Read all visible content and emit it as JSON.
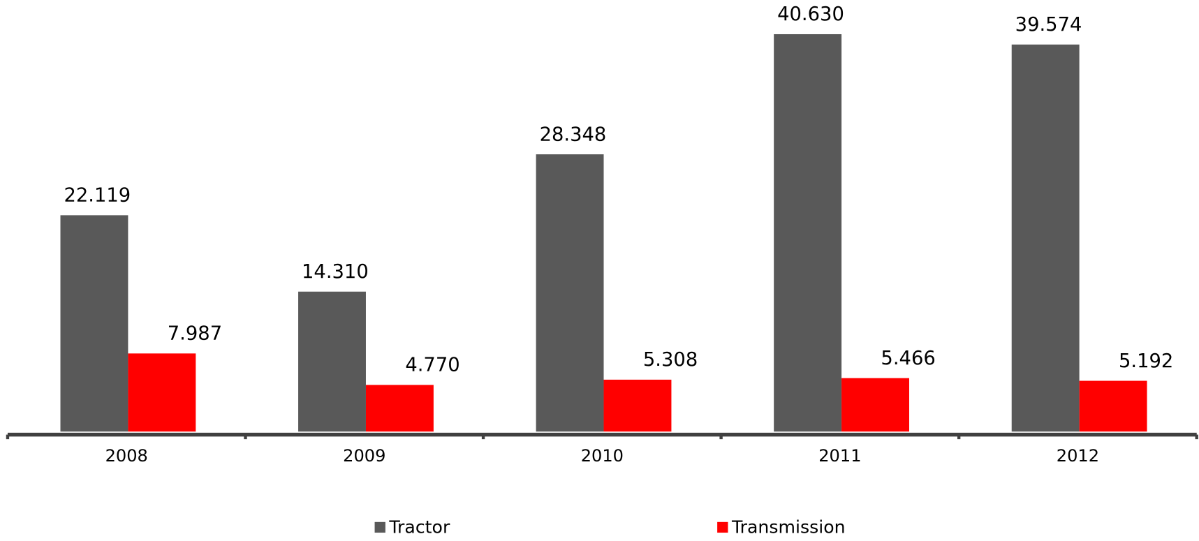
{
  "chart_data": {
    "type": "bar",
    "categories": [
      "2008",
      "2009",
      "2010",
      "2011",
      "2012"
    ],
    "series": [
      {
        "name": "Tractor",
        "color": "#595959",
        "values": [
          22.119,
          14.31,
          28.348,
          40.63,
          39.574
        ],
        "value_labels": [
          "22.119",
          "14.310",
          "28.348",
          "40.630",
          "39.574"
        ]
      },
      {
        "name": "Transmission",
        "color": "#ff0000",
        "values": [
          7.987,
          4.77,
          5.308,
          5.466,
          5.192
        ],
        "value_labels": [
          "7.987",
          "4.770",
          "5.308",
          "5.466",
          "5.192"
        ]
      }
    ],
    "legend": "bottom"
  }
}
